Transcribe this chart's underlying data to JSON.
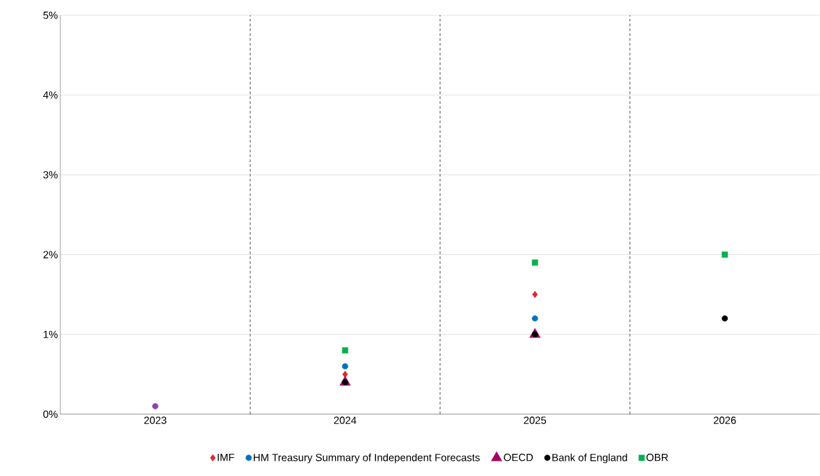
{
  "chart_data": {
    "type": "scatter",
    "categories": [
      "2023",
      "2024",
      "2025",
      "2026"
    ],
    "series": [
      {
        "name": "IMF",
        "color": "#e0282e",
        "marker": "diamond",
        "values": [
          null,
          0.5,
          1.5,
          null
        ]
      },
      {
        "name": "HM Treasury Summary of Independent Forecasts",
        "color": "#0070c0",
        "marker": "circle",
        "values": [
          null,
          0.6,
          1.2,
          null
        ]
      },
      {
        "name": "OECD",
        "color": "#a50064",
        "marker": "triangle",
        "values": [
          null,
          0.4,
          1.0,
          null
        ]
      },
      {
        "name": "Bank of England",
        "color": "#000000",
        "marker": "circle",
        "values": [
          null,
          0.4,
          1.0,
          1.2
        ]
      },
      {
        "name": "OBR",
        "color": "#00b050",
        "marker": "square",
        "values": [
          null,
          0.8,
          1.9,
          2.0
        ]
      },
      {
        "color": "#8e44ad",
        "marker": "circle",
        "values": [
          0.1,
          null,
          null,
          null
        ]
      }
    ],
    "ylim": [
      0,
      5
    ],
    "yticks": [
      {
        "value": 0,
        "label": "0%"
      },
      {
        "value": 1,
        "label": "1%"
      },
      {
        "value": 2,
        "label": "2%"
      },
      {
        "value": 3,
        "label": "3%"
      },
      {
        "value": 4,
        "label": "4%"
      },
      {
        "value": 5,
        "label": "5%"
      }
    ],
    "grid": "y",
    "legend": "bottom"
  }
}
